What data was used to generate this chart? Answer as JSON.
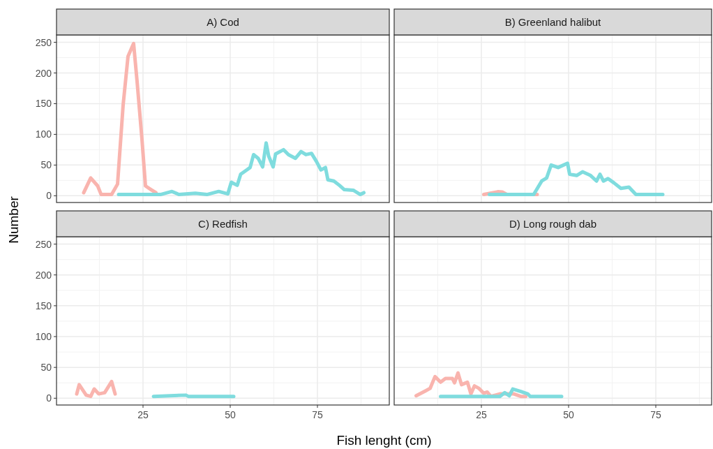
{
  "chart_data": [
    {
      "type": "line",
      "title": "A) Cod",
      "ylabel": "Number",
      "xlim": [
        0.2,
        95.6
      ],
      "ylim": [
        -11,
        262
      ],
      "xticks": [
        25,
        50,
        75
      ],
      "yticks": [
        0,
        50,
        100,
        150,
        200,
        250
      ],
      "grid": true,
      "tick_labels": "y",
      "series": [
        {
          "color": "#f9b4ae",
          "x": [
            8,
            10,
            12,
            13,
            16,
            17.7,
            19.3,
            20.7,
            22.3,
            23.3,
            24.7,
            25.7,
            27.3,
            28.7
          ],
          "values": [
            5,
            29,
            16,
            2,
            2,
            19,
            148,
            227,
            248,
            186,
            92,
            16,
            10,
            5
          ]
        },
        {
          "color": "#7fdcde",
          "x": [
            18,
            30,
            33.3,
            35.3,
            40,
            43.3,
            46.7,
            49.3,
            50.3,
            52,
            53,
            54.7,
            55.7,
            56.7,
            58,
            59.3,
            60.3,
            61,
            62.3,
            63,
            65.3,
            66.7,
            68.7,
            70.3,
            71.7,
            73.3,
            74.7,
            76,
            77.3,
            78,
            79.7,
            81.3,
            82.7,
            85.3,
            87.3,
            88.3
          ],
          "values": [
            2,
            2,
            7,
            2,
            4,
            2,
            7,
            3,
            22,
            17,
            35,
            42,
            46,
            67,
            61,
            47,
            86,
            65,
            47,
            68,
            75,
            67,
            61,
            72,
            67,
            69,
            56,
            42,
            46,
            26,
            24,
            17,
            10,
            9,
            2,
            5
          ]
        }
      ]
    },
    {
      "type": "line",
      "title": "B) Greenland halibut",
      "xlim": [
        0,
        91
      ],
      "ylim": [
        -11,
        262
      ],
      "xticks": [
        25,
        50,
        75
      ],
      "yticks": [
        0,
        50,
        100,
        150,
        200,
        250
      ],
      "grid": true,
      "tick_labels": false,
      "series": [
        {
          "color": "#f9b4ae",
          "x": [
            25.7,
            29.7,
            31,
            32.3,
            41
          ],
          "values": [
            2,
            6.5,
            6,
            2,
            2
          ]
        },
        {
          "color": "#7fdcde",
          "x": [
            27.3,
            40,
            42.3,
            43.7,
            45,
            47,
            49.7,
            50.3,
            52.3,
            54,
            56.3,
            58,
            59,
            60,
            61.3,
            63,
            65,
            67.3,
            69.3,
            77
          ],
          "values": [
            2,
            2,
            24,
            29,
            50,
            46,
            53,
            35,
            33,
            39,
            33,
            24,
            35,
            24,
            28,
            21,
            12,
            14,
            2,
            2
          ]
        }
      ]
    },
    {
      "type": "line",
      "title": "C) Redfish",
      "xlabel": "Fish lenght (cm)",
      "xlim": [
        0.2,
        95.6
      ],
      "ylim": [
        -11,
        262
      ],
      "xticks": [
        25,
        50,
        75
      ],
      "yticks": [
        0,
        50,
        100,
        150,
        200,
        250
      ],
      "grid": true,
      "series": [
        {
          "color": "#f9b4ae",
          "x": [
            6,
            6.7,
            8.7,
            10,
            11,
            12.3,
            14,
            16,
            17
          ],
          "values": [
            7,
            22,
            5,
            3,
            15,
            7,
            9,
            27,
            7
          ]
        },
        {
          "color": "#7fdcde",
          "x": [
            28,
            37.3,
            38,
            51
          ],
          "values": [
            3,
            5,
            3,
            3
          ]
        }
      ]
    },
    {
      "type": "line",
      "title": "D) Long rough dab",
      "xlim": [
        0,
        91
      ],
      "ylim": [
        -11,
        262
      ],
      "xticks": [
        25,
        50,
        75
      ],
      "yticks": [
        0,
        50,
        100,
        150,
        200,
        250
      ],
      "grid": true,
      "tick_labels": "x",
      "series": [
        {
          "color": "#f9b4ae",
          "x": [
            6.3,
            9,
            10.3,
            11.7,
            13.3,
            14.7,
            16.7,
            17.3,
            18.3,
            19.3,
            21,
            22,
            23,
            24.3,
            25.7,
            26.7,
            27.7,
            30.3,
            32.3,
            34.3,
            36.3,
            37.7
          ],
          "values": [
            4,
            12,
            16,
            35,
            26,
            32,
            32,
            25,
            41,
            22,
            26,
            7,
            20,
            16,
            8,
            10,
            3,
            7,
            7,
            7,
            3,
            3
          ]
        },
        {
          "color": "#7fdcde",
          "x": [
            13.3,
            30.3,
            31.7,
            33,
            34,
            36.3,
            38.3,
            39,
            48
          ],
          "values": [
            3,
            3,
            9,
            4,
            15,
            11,
            7,
            3,
            3
          ]
        }
      ]
    }
  ]
}
